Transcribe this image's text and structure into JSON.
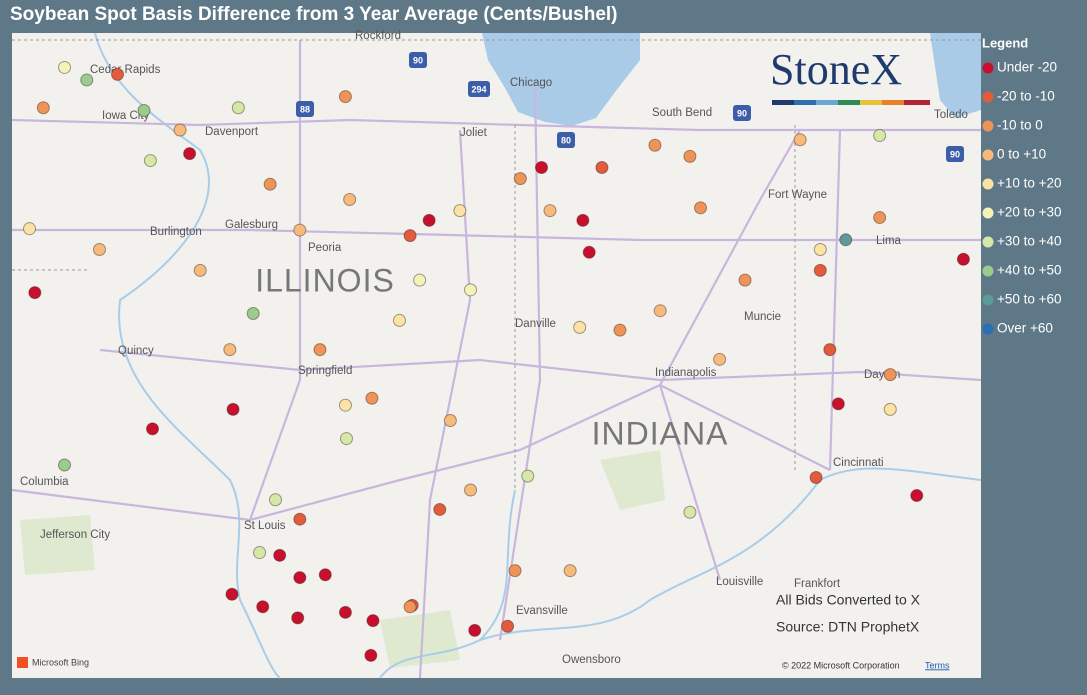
{
  "header": {
    "title": "Soybean Spot Basis Difference from 3 Year Average (Cents/Bushel)"
  },
  "legend": {
    "title": "Legend",
    "items": [
      {
        "label": "Under -20",
        "color": "#c8102e"
      },
      {
        "label": "-20 to -10",
        "color": "#e25b3c"
      },
      {
        "label": "-10 to 0",
        "color": "#ef9459"
      },
      {
        "label": "0 to +10",
        "color": "#f6bb7c"
      },
      {
        "label": "+10 to +20",
        "color": "#fbe3a6"
      },
      {
        "label": "+20 to +30",
        "color": "#f3f2b8"
      },
      {
        "label": "+30 to +40",
        "color": "#d6e8a8"
      },
      {
        "label": "+40 to +50",
        "color": "#9ccb8f"
      },
      {
        "label": "+50 to +60",
        "color": "#5c9c98"
      },
      {
        "label": "Over +60",
        "color": "#2b6fb2"
      }
    ]
  },
  "map": {
    "logo": "StoneX",
    "notes": [
      "All Bids Converted to X",
      "Source: DTN ProphetX"
    ],
    "attribution": "© 2022 Microsoft Corporation",
    "terms": "Terms",
    "provider": "Microsoft Bing",
    "labels": [
      "ILLINOIS",
      "INDIANA",
      "Cedar Rapids",
      "Iowa City",
      "Davenport",
      "Burlington",
      "Galesburg",
      "Peoria",
      "Quincy",
      "Springfield",
      "Columbia",
      "Jefferson City",
      "St Louis",
      "Chicago",
      "Joliet",
      "South Bend",
      "Fort Wayne",
      "Lima",
      "Toledo",
      "Muncie",
      "Indianapolis",
      "Dayton",
      "Cincinnati",
      "Louisville",
      "Frankfort",
      "Evansville",
      "Owensboro",
      "Danville",
      "Rockford"
    ],
    "shields": [
      "90",
      "88",
      "294",
      "80",
      "90",
      "90"
    ],
    "points": [
      {
        "lon": -92.19,
        "lat": 40.37,
        "class": 0
      },
      {
        "lon": -90.73,
        "lat": 41.37,
        "class": 0
      },
      {
        "lon": -91.08,
        "lat": 39.39,
        "class": 0
      },
      {
        "lon": -90.32,
        "lat": 39.53,
        "class": 0
      },
      {
        "lon": -89.88,
        "lat": 38.48,
        "class": 0
      },
      {
        "lon": -89.69,
        "lat": 38.32,
        "class": 0
      },
      {
        "lon": -89.45,
        "lat": 38.34,
        "class": 0
      },
      {
        "lon": -90.33,
        "lat": 38.2,
        "class": 0
      },
      {
        "lon": -90.04,
        "lat": 38.11,
        "class": 0
      },
      {
        "lon": -89.71,
        "lat": 38.03,
        "class": 0
      },
      {
        "lon": -89.26,
        "lat": 38.07,
        "class": 0
      },
      {
        "lon": -89.0,
        "lat": 38.01,
        "class": 0
      },
      {
        "lon": -89.02,
        "lat": 37.76,
        "class": 0
      },
      {
        "lon": -88.04,
        "lat": 37.94,
        "class": 0
      },
      {
        "lon": -87.02,
        "lat": 40.89,
        "class": 0
      },
      {
        "lon": -86.96,
        "lat": 40.66,
        "class": 0
      },
      {
        "lon": -87.41,
        "lat": 41.27,
        "class": 0
      },
      {
        "lon": -84.61,
        "lat": 39.57,
        "class": 0
      },
      {
        "lon": -83.87,
        "lat": 38.91,
        "class": 0
      },
      {
        "lon": -83.43,
        "lat": 40.61,
        "class": 0
      },
      {
        "lon": -88.47,
        "lat": 40.89,
        "class": 0
      },
      {
        "lon": -86.84,
        "lat": 41.27,
        "class": 1
      },
      {
        "lon": -91.41,
        "lat": 41.94,
        "class": 1
      },
      {
        "lon": -84.82,
        "lat": 39.04,
        "class": 1
      },
      {
        "lon": -84.69,
        "lat": 39.96,
        "class": 1
      },
      {
        "lon": -88.37,
        "lat": 38.81,
        "class": 1
      },
      {
        "lon": -87.73,
        "lat": 37.97,
        "class": 1
      },
      {
        "lon": -88.63,
        "lat": 38.12,
        "class": 1
      },
      {
        "lon": -89.69,
        "lat": 38.74,
        "class": 1
      },
      {
        "lon": -88.65,
        "lat": 40.78,
        "class": 1
      },
      {
        "lon": -84.78,
        "lat": 40.53,
        "class": 1
      },
      {
        "lon": -92.11,
        "lat": 41.7,
        "class": 2
      },
      {
        "lon": -86.34,
        "lat": 41.43,
        "class": 2
      },
      {
        "lon": -86.01,
        "lat": 41.35,
        "class": 2
      },
      {
        "lon": -87.61,
        "lat": 41.19,
        "class": 2
      },
      {
        "lon": -89.26,
        "lat": 41.78,
        "class": 2
      },
      {
        "lon": -89.97,
        "lat": 41.15,
        "class": 2
      },
      {
        "lon": -89.5,
        "lat": 39.96,
        "class": 2
      },
      {
        "lon": -89.01,
        "lat": 39.61,
        "class": 2
      },
      {
        "lon": -85.49,
        "lat": 40.46,
        "class": 2
      },
      {
        "lon": -85.91,
        "lat": 40.98,
        "class": 2
      },
      {
        "lon": -86.67,
        "lat": 40.1,
        "class": 2
      },
      {
        "lon": -87.66,
        "lat": 38.37,
        "class": 2
      },
      {
        "lon": -88.65,
        "lat": 38.11,
        "class": 2
      },
      {
        "lon": -84.22,
        "lat": 40.91,
        "class": 2
      },
      {
        "lon": -84.12,
        "lat": 39.78,
        "class": 2
      },
      {
        "lon": -91.58,
        "lat": 40.68,
        "class": 3
      },
      {
        "lon": -90.63,
        "lat": 40.53,
        "class": 3
      },
      {
        "lon": -89.69,
        "lat": 40.82,
        "class": 3
      },
      {
        "lon": -89.22,
        "lat": 41.04,
        "class": 3
      },
      {
        "lon": -88.27,
        "lat": 39.45,
        "class": 3
      },
      {
        "lon": -87.33,
        "lat": 40.96,
        "class": 3
      },
      {
        "lon": -86.29,
        "lat": 40.24,
        "class": 3
      },
      {
        "lon": -85.73,
        "lat": 39.89,
        "class": 3
      },
      {
        "lon": -84.97,
        "lat": 41.47,
        "class": 3
      },
      {
        "lon": -90.35,
        "lat": 39.96,
        "class": 3
      },
      {
        "lon": -90.82,
        "lat": 41.54,
        "class": 3
      },
      {
        "lon": -88.08,
        "lat": 38.95,
        "class": 3
      },
      {
        "lon": -87.14,
        "lat": 38.37,
        "class": 3
      },
      {
        "lon": -84.12,
        "lat": 39.53,
        "class": 4
      },
      {
        "lon": -92.24,
        "lat": 40.83,
        "class": 4
      },
      {
        "lon": -88.75,
        "lat": 40.17,
        "class": 4
      },
      {
        "lon": -88.18,
        "lat": 40.96,
        "class": 4
      },
      {
        "lon": -89.26,
        "lat": 39.56,
        "class": 4
      },
      {
        "lon": -87.05,
        "lat": 40.12,
        "class": 4
      },
      {
        "lon": -84.78,
        "lat": 40.68,
        "class": 4
      },
      {
        "lon": -88.56,
        "lat": 40.46,
        "class": 5
      },
      {
        "lon": -88.08,
        "lat": 40.39,
        "class": 5
      },
      {
        "lon": -91.91,
        "lat": 41.99,
        "class": 5
      },
      {
        "lon": -91.1,
        "lat": 41.32,
        "class": 6
      },
      {
        "lon": -90.27,
        "lat": 41.7,
        "class": 6
      },
      {
        "lon": -89.25,
        "lat": 39.32,
        "class": 6
      },
      {
        "lon": -86.01,
        "lat": 38.79,
        "class": 6
      },
      {
        "lon": -90.07,
        "lat": 38.5,
        "class": 6
      },
      {
        "lon": -87.54,
        "lat": 39.05,
        "class": 6
      },
      {
        "lon": -84.22,
        "lat": 41.5,
        "class": 6
      },
      {
        "lon": -91.16,
        "lat": 41.68,
        "class": 7
      },
      {
        "lon": -91.7,
        "lat": 41.9,
        "class": 7
      },
      {
        "lon": -90.13,
        "lat": 40.22,
        "class": 7
      },
      {
        "lon": -91.91,
        "lat": 39.13,
        "class": 7
      },
      {
        "lon": -84.54,
        "lat": 40.75,
        "class": 8
      },
      {
        "lon": -89.92,
        "lat": 38.88,
        "class": 6
      }
    ]
  }
}
